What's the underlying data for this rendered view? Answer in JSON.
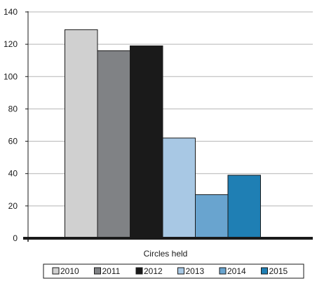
{
  "chart_data": {
    "type": "bar",
    "title": "",
    "xlabel": "Circles held",
    "ylabel": "",
    "categories": [
      "Circles held"
    ],
    "ylim": [
      0,
      140
    ],
    "yticks": [
      0,
      20,
      40,
      60,
      80,
      100,
      120,
      140
    ],
    "grid": true,
    "legend_position": "bottom",
    "series": [
      {
        "name": "2010",
        "values": [
          129
        ],
        "color": "#d0d0d0"
      },
      {
        "name": "2011",
        "values": [
          116
        ],
        "color": "#808285"
      },
      {
        "name": "2012",
        "values": [
          119
        ],
        "color": "#1a1a1a"
      },
      {
        "name": "2013",
        "values": [
          62
        ],
        "color": "#a8c8e4"
      },
      {
        "name": "2014",
        "values": [
          27
        ],
        "color": "#69a4cf"
      },
      {
        "name": "2015",
        "values": [
          39
        ],
        "color": "#1f7fb4"
      }
    ]
  }
}
